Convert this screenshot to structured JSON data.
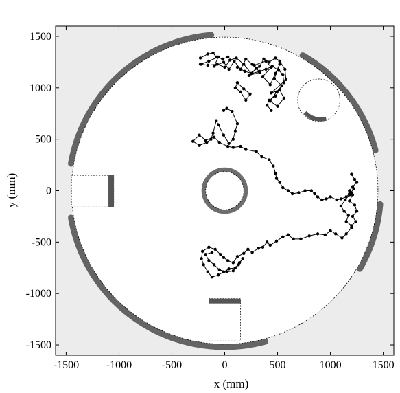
{
  "chart_data": {
    "type": "scatter",
    "xlabel": "x (mm)",
    "ylabel": "y (mm)",
    "xlim": [
      -1600,
      1600
    ],
    "ylim": [
      -1600,
      1600
    ],
    "xticks": [
      -1500,
      -1000,
      -500,
      0,
      500,
      1000,
      1500
    ],
    "yticks": [
      -1500,
      -1000,
      -500,
      0,
      500,
      1000,
      1500
    ],
    "xtick_labels": [
      "-1500",
      "-1000",
      "-500",
      "0",
      "500",
      "1000",
      "1500"
    ],
    "ytick_labels": [
      "-1500",
      "-1000",
      "-500",
      "0",
      "500",
      "1000",
      "1500"
    ],
    "arena": {
      "center": [
        0,
        0
      ],
      "radius": 1450
    },
    "inner_obstacle": {
      "center": [
        0,
        0
      ],
      "radius": 200
    },
    "edge_circle_obstacle": {
      "center": [
        890,
        880
      ],
      "radius": 200
    },
    "square_obstacles": [
      {
        "x0": -1450,
        "x1": -1050,
        "y0": -150,
        "y1": 150
      },
      {
        "x0": -150,
        "x1": 150,
        "y0": -1450,
        "y1": -1050
      }
    ],
    "trajectory_color": "#000000",
    "occupancy_color": "#555555",
    "background_color": "#ececec",
    "trajectory": [
      [
        -220,
        1230
      ],
      [
        -150,
        1260
      ],
      [
        -60,
        1300
      ],
      [
        -100,
        1210
      ],
      [
        -10,
        1250
      ],
      [
        40,
        1180
      ],
      [
        90,
        1260
      ],
      [
        150,
        1180
      ],
      [
        200,
        1280
      ],
      [
        260,
        1230
      ],
      [
        300,
        1190
      ],
      [
        230,
        1120
      ],
      [
        330,
        1150
      ],
      [
        280,
        1220
      ],
      [
        390,
        1260
      ],
      [
        440,
        1200
      ],
      [
        360,
        1110
      ],
      [
        430,
        1030
      ],
      [
        480,
        1140
      ],
      [
        520,
        1230
      ],
      [
        470,
        1090
      ],
      [
        540,
        1020
      ],
      [
        490,
        960
      ],
      [
        430,
        870
      ],
      [
        500,
        820
      ],
      [
        560,
        900
      ],
      [
        520,
        980
      ],
      [
        440,
        950
      ],
      [
        580,
        1080
      ],
      [
        570,
        1180
      ],
      [
        520,
        1260
      ],
      [
        480,
        1290
      ],
      [
        420,
        1250
      ],
      [
        370,
        1280
      ],
      [
        330,
        1210
      ],
      [
        250,
        1140
      ],
      [
        180,
        1230
      ],
      [
        110,
        1290
      ],
      [
        50,
        1270
      ],
      [
        0,
        1200
      ],
      [
        -70,
        1230
      ],
      [
        -160,
        1220
      ],
      [
        -230,
        1230
      ]
    ],
    "trajectory2": [
      [
        120,
        1050
      ],
      [
        100,
        1000
      ],
      [
        150,
        960
      ],
      [
        200,
        880
      ],
      [
        240,
        940
      ],
      [
        180,
        990
      ],
      [
        120,
        1050
      ]
    ],
    "trajectory3": [
      [
        -230,
        1290
      ],
      [
        -160,
        1330
      ],
      [
        -110,
        1340
      ],
      [
        -80,
        1300
      ],
      [
        -20,
        1280
      ],
      [
        30,
        1300
      ]
    ],
    "trajectory4": [
      [
        120,
        1200
      ],
      [
        190,
        1160
      ],
      [
        260,
        1140
      ],
      [
        330,
        1160
      ],
      [
        390,
        1180
      ],
      [
        450,
        1210
      ],
      [
        510,
        1170
      ],
      [
        550,
        1130
      ],
      [
        560,
        1050
      ],
      [
        520,
        980
      ],
      [
        480,
        920
      ],
      [
        420,
        880
      ],
      [
        400,
        830
      ],
      [
        440,
        780
      ]
    ],
    "trajectory5": [
      [
        -10,
        780
      ],
      [
        20,
        800
      ],
      [
        70,
        770
      ],
      [
        120,
        650
      ],
      [
        100,
        580
      ],
      [
        80,
        500
      ],
      [
        40,
        460
      ],
      [
        -10,
        540
      ],
      [
        -60,
        640
      ],
      [
        -80,
        680
      ],
      [
        -110,
        560
      ],
      [
        -130,
        500
      ],
      [
        -170,
        470
      ],
      [
        -240,
        440
      ],
      [
        -300,
        480
      ],
      [
        -240,
        540
      ],
      [
        -180,
        490
      ],
      [
        -100,
        520
      ],
      [
        -50,
        470
      ],
      [
        30,
        430
      ],
      [
        80,
        420
      ],
      [
        150,
        430
      ],
      [
        200,
        400
      ],
      [
        300,
        380
      ],
      [
        350,
        330
      ],
      [
        420,
        300
      ],
      [
        460,
        240
      ],
      [
        480,
        170
      ],
      [
        490,
        120
      ],
      [
        520,
        80
      ],
      [
        550,
        30
      ],
      [
        600,
        0
      ],
      [
        640,
        -30
      ],
      [
        700,
        -20
      ],
      [
        760,
        0
      ],
      [
        820,
        0
      ],
      [
        850,
        -30
      ],
      [
        880,
        -60
      ],
      [
        920,
        -90
      ],
      [
        960,
        -80
      ],
      [
        1000,
        -60
      ],
      [
        1060,
        -90
      ],
      [
        1100,
        -80
      ],
      [
        1150,
        -60
      ],
      [
        1180,
        -30
      ],
      [
        1200,
        -20
      ]
    ],
    "trajectory6": [
      [
        1200,
        160
      ],
      [
        1230,
        110
      ],
      [
        1250,
        80
      ],
      [
        1210,
        40
      ],
      [
        1180,
        0
      ],
      [
        1210,
        -40
      ],
      [
        1180,
        -100
      ],
      [
        1230,
        -140
      ],
      [
        1250,
        -200
      ],
      [
        1210,
        -250
      ],
      [
        1240,
        -300
      ],
      [
        1200,
        -340
      ],
      [
        1150,
        -300
      ],
      [
        1170,
        -240
      ],
      [
        1130,
        -200
      ],
      [
        1100,
        -150
      ],
      [
        1140,
        -90
      ],
      [
        1180,
        -40
      ],
      [
        1220,
        20
      ]
    ],
    "trajectory7": [
      [
        1200,
        -360
      ],
      [
        1150,
        -420
      ],
      [
        1110,
        -460
      ],
      [
        1050,
        -420
      ],
      [
        1000,
        -390
      ],
      [
        950,
        -430
      ],
      [
        880,
        -420
      ],
      [
        800,
        -440
      ],
      [
        720,
        -470
      ],
      [
        650,
        -470
      ],
      [
        600,
        -430
      ],
      [
        550,
        -450
      ],
      [
        490,
        -490
      ],
      [
        430,
        -530
      ],
      [
        400,
        -500
      ],
      [
        360,
        -550
      ],
      [
        320,
        -560
      ],
      [
        260,
        -600
      ],
      [
        220,
        -570
      ],
      [
        180,
        -610
      ],
      [
        120,
        -640
      ],
      [
        80,
        -700
      ],
      [
        30,
        -680
      ],
      [
        -10,
        -650
      ],
      [
        -40,
        -620
      ],
      [
        -90,
        -570
      ],
      [
        -150,
        -550
      ],
      [
        -210,
        -590
      ],
      [
        -220,
        -660
      ],
      [
        -200,
        -720
      ],
      [
        -160,
        -790
      ],
      [
        -120,
        -840
      ],
      [
        -60,
        -820
      ],
      [
        -10,
        -790
      ],
      [
        40,
        -760
      ],
      [
        100,
        -750
      ],
      [
        140,
        -700
      ],
      [
        170,
        -660
      ],
      [
        130,
        -720
      ],
      [
        80,
        -780
      ],
      [
        20,
        -790
      ],
      [
        -50,
        -770
      ],
      [
        -100,
        -720
      ],
      [
        -150,
        -680
      ],
      [
        -180,
        -620
      ],
      [
        -120,
        -600
      ]
    ]
  }
}
